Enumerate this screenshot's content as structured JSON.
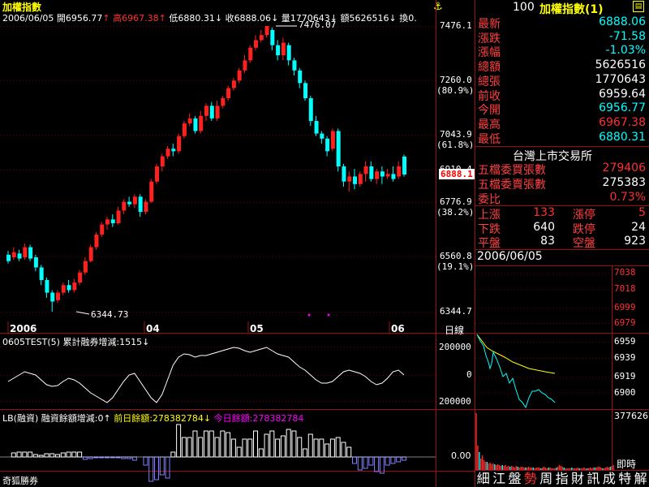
{
  "header": {
    "title": "加權指數",
    "date": "2006/06/05",
    "open_label": "開",
    "open_value": "6956.77",
    "high_label": "高",
    "high_value": "6967.38",
    "low_label": "低",
    "low_value": "6880.31",
    "close_label": "收",
    "close_value": "6888.06",
    "volume_label": "量",
    "volume_value": "1770643",
    "amount_label": "額",
    "amount_value": "5626516",
    "turnover_label": "換",
    "turnover_value": "0.",
    "anchor_icon": "anchor-icon"
  },
  "main_chart": {
    "y_ticks": [
      {
        "label": "7476.1",
        "pct": ""
      },
      {
        "label": "7260.0",
        "pct": "(80.9%)"
      },
      {
        "label": "7043.9",
        "pct": "(61.8%)"
      },
      {
        "label": "6910.4",
        "pct": ""
      },
      {
        "label": "6776.9",
        "pct": "(38.2%)"
      },
      {
        "label": "6560.8",
        "pct": "(19.1%)"
      },
      {
        "label": "6344.7",
        "pct": ""
      }
    ],
    "current_price_tag": "6888.1",
    "high_marker": "7476.07",
    "low_marker": "6344.73",
    "x_labels": [
      "2006",
      "04",
      "05",
      "06"
    ],
    "period_label": "日線"
  },
  "indicator1": {
    "title": "0605TEST(5)",
    "subtitle": "累計融券增減:1515",
    "y_ticks": [
      "200000",
      "0",
      "200000"
    ]
  },
  "indicator2": {
    "title": "LB(融資)",
    "label1": "融資餘額增減:0",
    "label2": "前日餘額:278382784",
    "label3": "今日餘額:278382784"
  },
  "footer": {
    "broker": "奇狐勝券"
  },
  "quote": {
    "code": "100",
    "name": "加權指數(1)",
    "rows": [
      {
        "label": "最新",
        "value": "6888.06",
        "color": "#00ffff"
      },
      {
        "label": "漲跌",
        "value": "-71.58",
        "color": "#00ffff"
      },
      {
        "label": "漲幅",
        "value": "-1.03%",
        "color": "#00ffff"
      },
      {
        "label": "總額",
        "value": "5626516",
        "color": "#ffffff"
      },
      {
        "label": "總張",
        "value": "1770643",
        "color": "#ffffff"
      },
      {
        "label": "前收",
        "value": "6959.64",
        "color": "#ffffff"
      },
      {
        "label": "今開",
        "value": "6956.77",
        "color": "#00ffff"
      },
      {
        "label": "最高",
        "value": "6967.38",
        "color": "#ff3030"
      },
      {
        "label": "最低",
        "value": "6880.31",
        "color": "#00ffff"
      }
    ],
    "exchange": "台灣上市交易所",
    "orders": [
      {
        "label": "五檔委買張數",
        "value": "279406",
        "color": "#ff3030"
      },
      {
        "label": "五檔委賣張數",
        "value": "275383",
        "color": "#ffffff"
      },
      {
        "label": "委比",
        "value": "0.73%",
        "color": "#ff3030"
      }
    ],
    "breadth": [
      {
        "l1": "上漲",
        "v1": "133",
        "l2": "漲停",
        "v2": "5"
      },
      {
        "l1": "下跌",
        "v1": "640",
        "l2": "跌停",
        "v2": "24"
      },
      {
        "l1": "平盤",
        "v1": "83",
        "l2": "空盤",
        "v2": "923"
      }
    ]
  },
  "intraday": {
    "date": "2006/06/05",
    "y_ticks": [
      "7038",
      "7018",
      "6999",
      "6979",
      "6959",
      "6939",
      "6919",
      "6900"
    ],
    "vol_top": "377626",
    "vol_mid": "0.00",
    "realtime_label": "即時"
  },
  "bottom_tabs": [
    "細",
    "江",
    "盤",
    "勢",
    "周",
    "指",
    "財",
    "訊",
    "成",
    "特",
    "解"
  ],
  "colors": {
    "up": "#ff2020",
    "down": "#00ffff",
    "grid": "#8b0000",
    "accent": "#ffff00"
  }
}
